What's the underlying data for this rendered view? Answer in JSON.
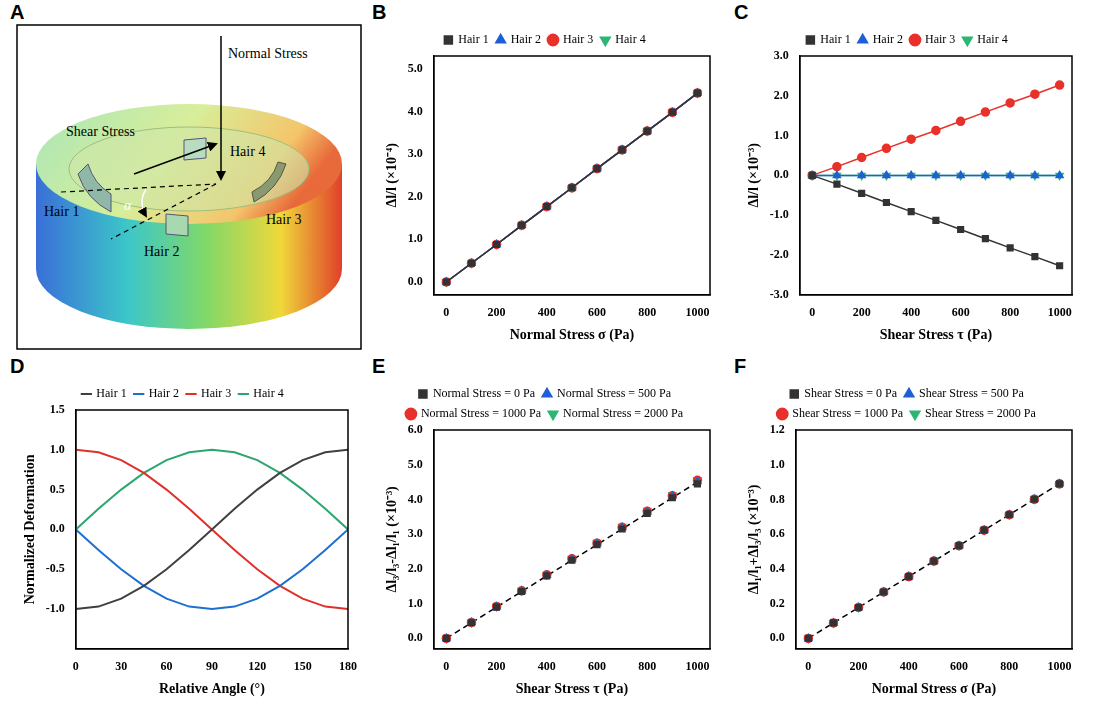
{
  "diagram": {
    "panel": "A",
    "normal_stress": "Normal Stress",
    "shear_stress": "Shear Stress",
    "hairs": [
      "Hair 1",
      "Hair 2",
      "Hair 3",
      "Hair 4"
    ],
    "angle": "α"
  },
  "chart_data": [
    {
      "panel": "B",
      "type": "line",
      "xlabel": "Normal Stress σ (Pa)",
      "ylabel": "Δl/l (×10⁻⁴)",
      "x": [
        0,
        100,
        200,
        300,
        400,
        500,
        600,
        700,
        800,
        900,
        1000
      ],
      "xlim": [
        -50,
        1050
      ],
      "xticks": [
        0,
        200,
        400,
        600,
        800,
        1000
      ],
      "ylim": [
        -0.3,
        5.3
      ],
      "yticks": [
        {
          "value": 0,
          "label": "0.0"
        },
        {
          "value": 1,
          "label": "1.0"
        },
        {
          "value": 2,
          "label": "2.0"
        },
        {
          "value": 3,
          "label": "3.0"
        },
        {
          "value": 4,
          "label": "4.0"
        },
        {
          "value": 5,
          "label": "5.0"
        }
      ],
      "grid": false,
      "legend": "top",
      "series": [
        {
          "name": "Hair 1",
          "color": "#333333",
          "marker": "square",
          "values": [
            0,
            0.44,
            0.88,
            1.33,
            1.77,
            2.21,
            2.66,
            3.1,
            3.54,
            3.98,
            4.43
          ]
        },
        {
          "name": "Hair 2",
          "color": "#1f5fd6",
          "marker": "triangle",
          "values": [
            0,
            0.44,
            0.88,
            1.33,
            1.77,
            2.21,
            2.66,
            3.1,
            3.54,
            3.98,
            4.43
          ]
        },
        {
          "name": "Hair 3",
          "color": "#e8312a",
          "marker": "circle",
          "values": [
            0,
            0.44,
            0.88,
            1.33,
            1.77,
            2.21,
            2.66,
            3.1,
            3.54,
            3.98,
            4.43
          ]
        },
        {
          "name": "Hair 4",
          "color": "#2bb673",
          "marker": "triangle_down",
          "values": [
            0,
            0.44,
            0.88,
            1.33,
            1.77,
            2.21,
            2.66,
            3.1,
            3.54,
            3.98,
            4.43
          ]
        }
      ]
    },
    {
      "panel": "C",
      "type": "line",
      "xlabel": "Shear Stress τ (Pa)",
      "ylabel": "Δl/l (×10⁻³)",
      "x": [
        0,
        100,
        200,
        300,
        400,
        500,
        600,
        700,
        800,
        900,
        1000
      ],
      "xlim": [
        -50,
        1050
      ],
      "xticks": [
        0,
        200,
        400,
        600,
        800,
        1000
      ],
      "ylim": [
        -3,
        3
      ],
      "yticks": [
        {
          "value": -3,
          "label": "-3.0"
        },
        {
          "value": -2,
          "label": "-2.0"
        },
        {
          "value": -1,
          "label": "-1.0"
        },
        {
          "value": 0,
          "label": "0.0"
        },
        {
          "value": 1,
          "label": "1.0"
        },
        {
          "value": 2,
          "label": "2.0"
        },
        {
          "value": 3,
          "label": "3.0"
        }
      ],
      "grid": false,
      "legend": "top",
      "series": [
        {
          "name": "Hair 1",
          "color": "#333333",
          "marker": "square",
          "values": [
            0,
            -0.22,
            -0.45,
            -0.68,
            -0.91,
            -1.13,
            -1.36,
            -1.59,
            -1.82,
            -2.04,
            -2.27
          ]
        },
        {
          "name": "Hair 2",
          "color": "#1f5fd6",
          "marker": "triangle",
          "values": [
            0,
            0,
            0,
            0,
            0,
            0,
            0,
            0,
            0,
            0,
            0
          ]
        },
        {
          "name": "Hair 3",
          "color": "#e8312a",
          "marker": "circle",
          "values": [
            0,
            0.22,
            0.45,
            0.68,
            0.91,
            1.13,
            1.36,
            1.59,
            1.82,
            2.04,
            2.27
          ]
        },
        {
          "name": "Hair 4",
          "color": "#2bb673",
          "marker": "triangle_down",
          "values": [
            0,
            0,
            0,
            0,
            0,
            0,
            0,
            0,
            0,
            0,
            0
          ]
        }
      ]
    },
    {
      "panel": "D",
      "type": "line",
      "xlabel": "Relative Angle (°)",
      "ylabel": "Normalized Deformation",
      "x": [
        0,
        15,
        30,
        45,
        60,
        75,
        90,
        105,
        120,
        135,
        150,
        165,
        180
      ],
      "xlim": [
        0,
        180
      ],
      "xticks": [
        0,
        30,
        60,
        90,
        120,
        150,
        180
      ],
      "ylim": [
        -1.5,
        1.5
      ],
      "yticks": [
        {
          "value": -1,
          "label": "-1.0"
        },
        {
          "value": -0.5,
          "label": "-0.5"
        },
        {
          "value": 0,
          "label": "0.0"
        },
        {
          "value": 0.5,
          "label": "0.5"
        },
        {
          "value": 1,
          "label": "1.0"
        },
        {
          "value": 1.5,
          "label": "1.5"
        }
      ],
      "grid": false,
      "legend": "top",
      "series": [
        {
          "name": "Hair 1",
          "color": "#404040",
          "marker": "none",
          "values": [
            -1,
            -0.97,
            -0.87,
            -0.71,
            -0.5,
            -0.26,
            0,
            0.26,
            0.5,
            0.71,
            0.87,
            0.97,
            1
          ]
        },
        {
          "name": "Hair 2",
          "color": "#1f6fd0",
          "marker": "none",
          "values": [
            0,
            -0.26,
            -0.5,
            -0.71,
            -0.87,
            -0.97,
            -1,
            -0.97,
            -0.87,
            -0.71,
            -0.5,
            -0.26,
            0
          ]
        },
        {
          "name": "Hair 3",
          "color": "#e0302a",
          "marker": "none",
          "values": [
            1,
            0.97,
            0.87,
            0.71,
            0.5,
            0.26,
            0,
            -0.26,
            -0.5,
            -0.71,
            -0.87,
            -0.97,
            -1
          ]
        },
        {
          "name": "Hair 4",
          "color": "#2ca66f",
          "marker": "none",
          "values": [
            0,
            0.26,
            0.5,
            0.71,
            0.87,
            0.97,
            1,
            0.97,
            0.87,
            0.71,
            0.5,
            0.26,
            0
          ]
        }
      ]
    },
    {
      "panel": "E",
      "type": "scatter",
      "xlabel": "Shear Stress τ (Pa)",
      "ylabel": "Δl₃/l₃-Δl₁/l₁ (×10⁻³)",
      "x": [
        0,
        100,
        200,
        300,
        400,
        500,
        600,
        700,
        800,
        900,
        1000
      ],
      "xlim": [
        -50,
        1050
      ],
      "xticks": [
        0,
        200,
        400,
        600,
        800,
        1000
      ],
      "ylim": [
        -0.3,
        6
      ],
      "yticks": [
        {
          "value": 0,
          "label": "0.0"
        },
        {
          "value": 1,
          "label": "1.0"
        },
        {
          "value": 2,
          "label": "2.0"
        },
        {
          "value": 3,
          "label": "3.0"
        },
        {
          "value": 4,
          "label": "4.0"
        },
        {
          "value": 5,
          "label": "5.0"
        },
        {
          "value": 6,
          "label": "6.0"
        }
      ],
      "grid": false,
      "legend": "top",
      "series": [
        {
          "name": "Normal Stress = 0 Pa",
          "color": "#333333",
          "marker": "square",
          "values": [
            0,
            0.45,
            0.9,
            1.35,
            1.8,
            2.25,
            2.7,
            3.15,
            3.6,
            4.05,
            4.45
          ]
        },
        {
          "name": "Normal Stress = 500 Pa",
          "color": "#1f5fd6",
          "marker": "triangle",
          "values": [
            0,
            0.46,
            0.91,
            1.37,
            1.82,
            2.28,
            2.73,
            3.19,
            3.64,
            4.1,
            4.52
          ]
        },
        {
          "name": "Normal Stress = 1000 Pa",
          "color": "#e8312a",
          "marker": "circle",
          "values": [
            0,
            0.46,
            0.92,
            1.37,
            1.83,
            2.29,
            2.74,
            3.2,
            3.66,
            4.11,
            4.55
          ]
        },
        {
          "name": "Normal Stress = 2000 Pa",
          "color": "#2bb673",
          "marker": "triangle_down",
          "values": [
            0,
            0.46,
            0.92,
            1.38,
            1.84,
            2.3,
            2.76,
            3.22,
            3.68,
            4.13,
            4.57
          ]
        }
      ],
      "fit_line": {
        "x": [
          0,
          1000
        ],
        "values": [
          0,
          4.5
        ],
        "color": "#000000",
        "line_style": "dashed"
      }
    },
    {
      "panel": "F",
      "type": "scatter",
      "xlabel": "Normal Stress σ (Pa)",
      "ylabel": "Δl₁/l₁+Δl₃/l₃ (×10⁻³)",
      "x": [
        0,
        100,
        200,
        300,
        400,
        500,
        600,
        700,
        800,
        900,
        1000
      ],
      "xlim": [
        -50,
        1050
      ],
      "xticks": [
        0,
        200,
        400,
        600,
        800,
        1000
      ],
      "ylim": [
        -0.06,
        1.2
      ],
      "yticks": [
        {
          "value": 0,
          "label": "0.0"
        },
        {
          "value": 0.2,
          "label": "0.2"
        },
        {
          "value": 0.4,
          "label": "0.4"
        },
        {
          "value": 0.6,
          "label": "0.6"
        },
        {
          "value": 0.8,
          "label": "0.8"
        },
        {
          "value": 1,
          "label": "1.0"
        },
        {
          "value": 1.2,
          "label": "1.2"
        }
      ],
      "grid": false,
      "legend": "top",
      "series": [
        {
          "name": "Shear Stress = 0 Pa",
          "color": "#333333",
          "marker": "square",
          "values": [
            0,
            0.089,
            0.178,
            0.267,
            0.356,
            0.445,
            0.534,
            0.623,
            0.712,
            0.801,
            0.89
          ]
        },
        {
          "name": "Shear Stress = 500 Pa",
          "color": "#1f5fd6",
          "marker": "triangle",
          "values": [
            0,
            0.089,
            0.178,
            0.267,
            0.356,
            0.445,
            0.534,
            0.623,
            0.712,
            0.801,
            0.89
          ]
        },
        {
          "name": "Shear Stress = 1000 Pa",
          "color": "#e8312a",
          "marker": "circle",
          "values": [
            0,
            0.089,
            0.178,
            0.267,
            0.356,
            0.445,
            0.534,
            0.623,
            0.712,
            0.801,
            0.89
          ]
        },
        {
          "name": "Shear Stress = 2000 Pa",
          "color": "#2bb673",
          "marker": "triangle_down",
          "values": [
            0,
            0.089,
            0.178,
            0.267,
            0.356,
            0.445,
            0.534,
            0.623,
            0.712,
            0.801,
            0.89
          ]
        }
      ],
      "fit_line": {
        "x": [
          0,
          1000
        ],
        "values": [
          0,
          0.89
        ],
        "color": "#000000",
        "line_style": "dashed"
      }
    }
  ]
}
